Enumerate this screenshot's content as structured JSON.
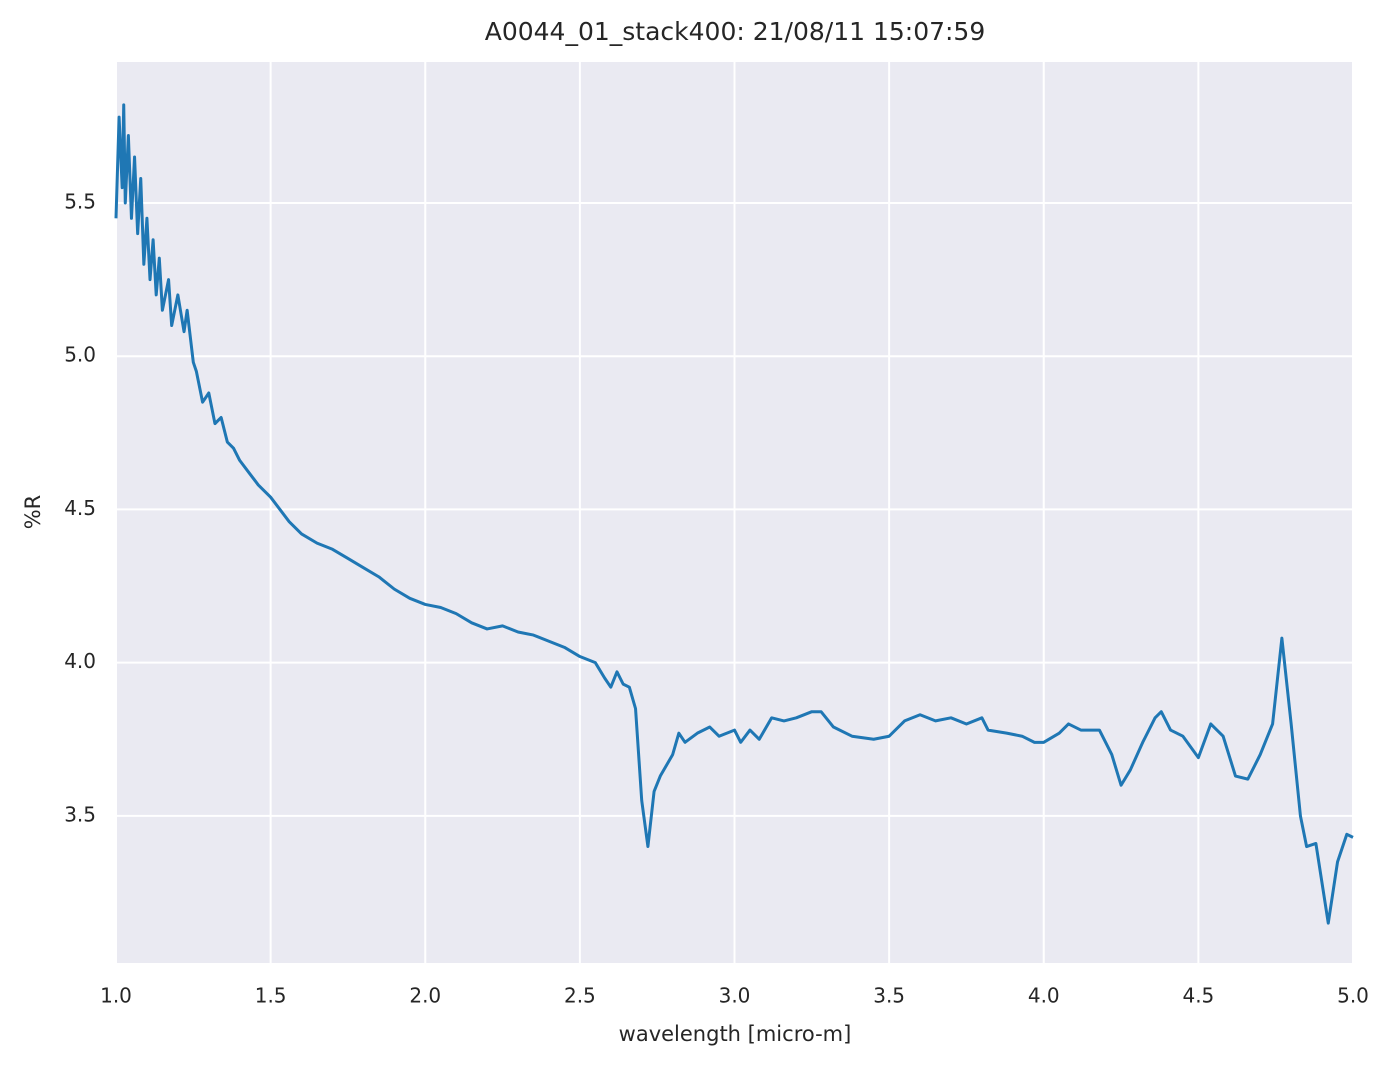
{
  "chart_data": {
    "type": "line",
    "title": "A0044_01_stack400:  21/08/11 15:07:59",
    "x_label": "wavelength [micro-m]",
    "y_label": "%R",
    "xlim": [
      1.0,
      5.0
    ],
    "ylim": [
      3.02,
      5.96
    ],
    "xticks": [
      {
        "value": 1.0,
        "label": "1.0"
      },
      1.5,
      {
        "value": 2.0,
        "label": "2.0"
      },
      2.5,
      {
        "value": 3.0,
        "label": "3.0"
      },
      3.5,
      {
        "value": 4.0,
        "label": "4.0"
      },
      4.5,
      {
        "value": 5.0,
        "label": "5.0"
      }
    ],
    "yticks": [
      3.5,
      {
        "value": 4.0,
        "label": "4.0"
      },
      4.5,
      {
        "value": 5.0,
        "label": "5.0"
      },
      5.5
    ],
    "grid": true,
    "series": [
      {
        "color": "#1f77b4",
        "x": [
          1.0,
          1.01,
          1.02,
          1.025,
          1.03,
          1.04,
          1.05,
          1.06,
          1.07,
          1.08,
          1.09,
          1.1,
          1.11,
          1.12,
          1.13,
          1.14,
          1.15,
          1.17,
          1.18,
          1.2,
          1.22,
          1.23,
          1.25,
          1.26,
          1.28,
          1.3,
          1.32,
          1.34,
          1.36,
          1.38,
          1.4,
          1.43,
          1.46,
          1.5,
          1.53,
          1.56,
          1.6,
          1.65,
          1.7,
          1.75,
          1.8,
          1.85,
          1.9,
          1.95,
          2.0,
          2.05,
          2.1,
          2.15,
          2.2,
          2.25,
          2.3,
          2.35,
          2.4,
          2.45,
          2.5,
          2.55,
          2.58,
          2.6,
          2.62,
          2.64,
          2.66,
          2.68,
          2.7,
          2.72,
          2.74,
          2.76,
          2.8,
          2.82,
          2.84,
          2.88,
          2.92,
          2.95,
          3.0,
          3.02,
          3.05,
          3.08,
          3.12,
          3.16,
          3.2,
          3.25,
          3.28,
          3.32,
          3.38,
          3.45,
          3.5,
          3.55,
          3.6,
          3.65,
          3.7,
          3.75,
          3.8,
          3.82,
          3.88,
          3.93,
          3.97,
          4.0,
          4.05,
          4.08,
          4.12,
          4.18,
          4.22,
          4.25,
          4.28,
          4.32,
          4.36,
          4.38,
          4.41,
          4.45,
          4.5,
          4.54,
          4.58,
          4.62,
          4.66,
          4.7,
          4.74,
          4.77,
          4.8,
          4.83,
          4.85,
          4.88,
          4.92,
          4.95,
          4.98,
          5.0
        ],
        "values": [
          5.45,
          5.78,
          5.55,
          5.82,
          5.5,
          5.72,
          5.45,
          5.65,
          5.4,
          5.58,
          5.3,
          5.45,
          5.25,
          5.38,
          5.2,
          5.32,
          5.15,
          5.25,
          5.1,
          5.2,
          5.08,
          5.15,
          4.98,
          4.95,
          4.85,
          4.88,
          4.78,
          4.8,
          4.72,
          4.7,
          4.66,
          4.62,
          4.58,
          4.54,
          4.5,
          4.46,
          4.42,
          4.39,
          4.37,
          4.34,
          4.31,
          4.28,
          4.24,
          4.21,
          4.19,
          4.18,
          4.16,
          4.13,
          4.11,
          4.12,
          4.1,
          4.09,
          4.07,
          4.05,
          4.02,
          4.0,
          3.95,
          3.92,
          3.97,
          3.93,
          3.92,
          3.85,
          3.55,
          3.4,
          3.58,
          3.63,
          3.7,
          3.77,
          3.74,
          3.77,
          3.79,
          3.76,
          3.78,
          3.74,
          3.78,
          3.75,
          3.82,
          3.81,
          3.82,
          3.84,
          3.84,
          3.79,
          3.76,
          3.75,
          3.76,
          3.81,
          3.83,
          3.81,
          3.82,
          3.8,
          3.82,
          3.78,
          3.77,
          3.76,
          3.74,
          3.74,
          3.77,
          3.8,
          3.78,
          3.78,
          3.7,
          3.6,
          3.65,
          3.74,
          3.82,
          3.84,
          3.78,
          3.76,
          3.69,
          3.8,
          3.76,
          3.63,
          3.62,
          3.7,
          3.8,
          4.08,
          3.8,
          3.5,
          3.4,
          3.41,
          3.15,
          3.35,
          3.44,
          3.43
        ]
      }
    ]
  }
}
